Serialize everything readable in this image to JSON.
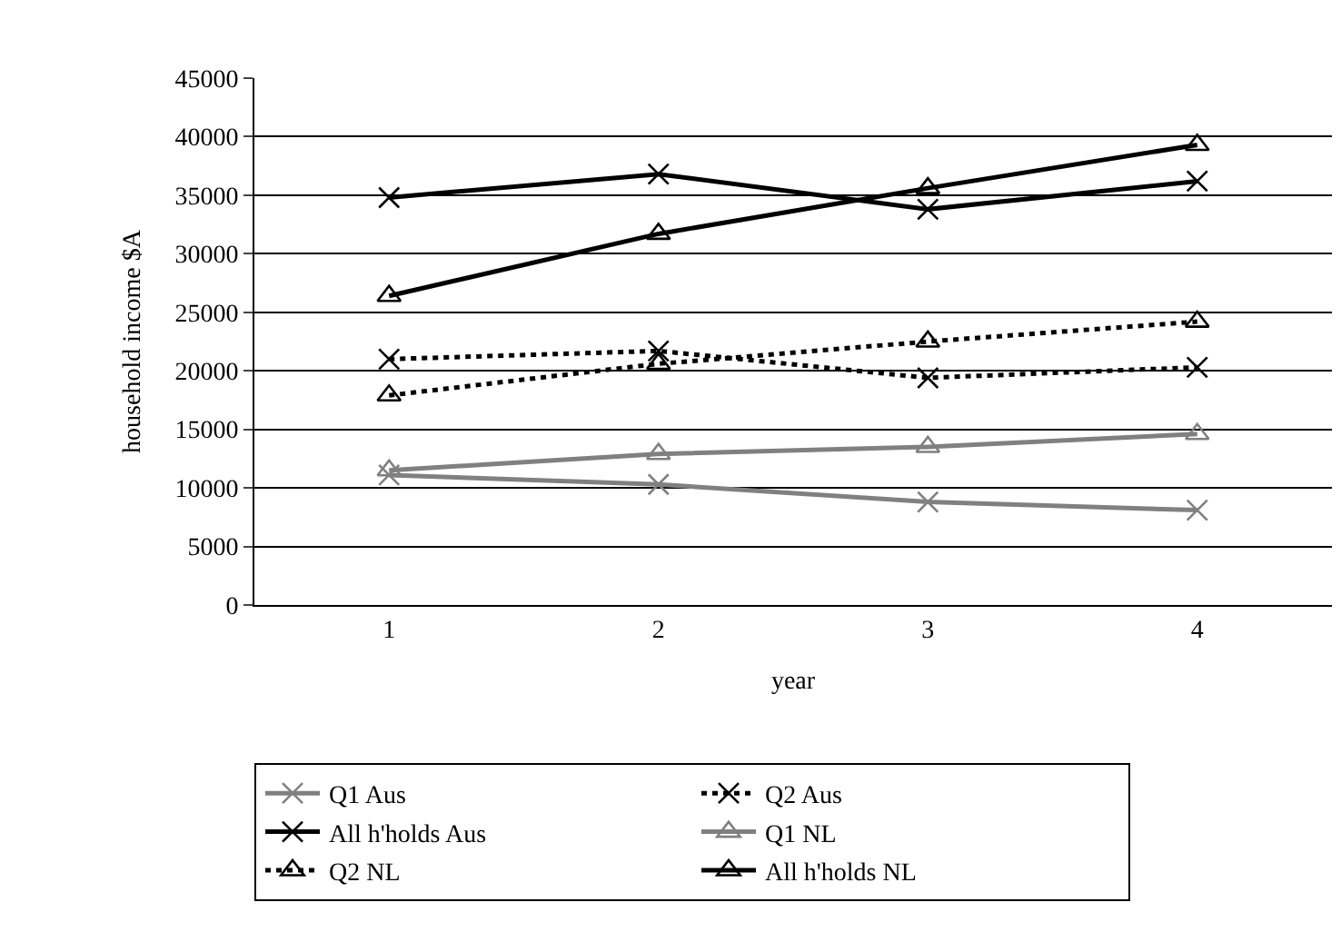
{
  "chart_data": {
    "type": "line",
    "xlabel": "year",
    "ylabel": "household income $A",
    "categories": [
      "1",
      "2",
      "3",
      "4"
    ],
    "ylim": [
      0,
      45000
    ],
    "yticks": [
      0,
      5000,
      10000,
      15000,
      20000,
      25000,
      30000,
      35000,
      40000,
      45000
    ],
    "grid": "y",
    "legend": "bottom",
    "series": [
      {
        "name": "Q1 Aus",
        "color": "#808080",
        "marker": "cross",
        "line_style": "solid",
        "values": [
          11100,
          10300,
          8800,
          8100
        ]
      },
      {
        "name": "Q2 Aus",
        "color": "#000000",
        "marker": "cross",
        "line_style": "dotted",
        "values": [
          21000,
          21700,
          19400,
          20300
        ]
      },
      {
        "name": "All h'holds Aus",
        "color": "#000000",
        "marker": "cross",
        "line_style": "solid",
        "values": [
          34800,
          36800,
          33800,
          36200
        ]
      },
      {
        "name": "Q1 NL",
        "color": "#808080",
        "marker": "triangle",
        "line_style": "solid",
        "values": [
          11500,
          12900,
          13500,
          14600
        ]
      },
      {
        "name": "Q2 NL",
        "color": "#000000",
        "marker": "triangle",
        "line_style": "dotted",
        "values": [
          17900,
          20600,
          22500,
          24200
        ]
      },
      {
        "name": "All h'holds NL",
        "color": "#000000",
        "marker": "triangle",
        "line_style": "solid",
        "values": [
          26400,
          31700,
          35600,
          39300
        ]
      }
    ]
  }
}
